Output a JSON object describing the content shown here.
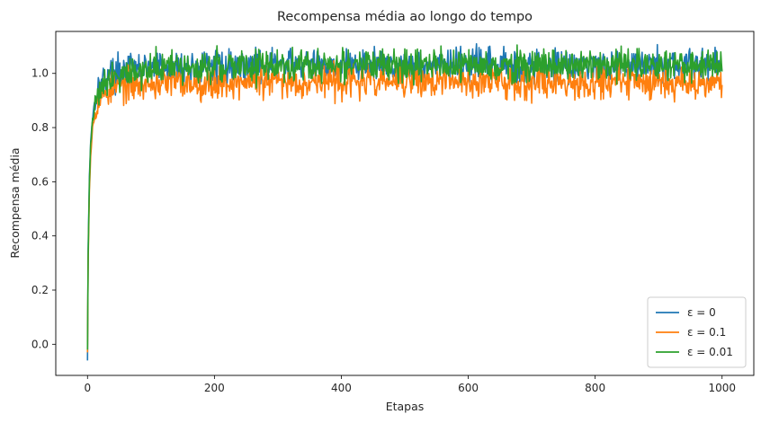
{
  "chart_data": {
    "type": "line",
    "title": "Recompensa média ao longo do tempo",
    "xlabel": "Etapas",
    "ylabel": "Recompensa média",
    "xlim": [
      -50,
      1050
    ],
    "ylim": [
      -0.115,
      1.155
    ],
    "xticks": [
      0,
      200,
      400,
      600,
      800,
      1000
    ],
    "yticks": [
      0.0,
      0.2,
      0.4,
      0.6,
      0.8,
      1.0
    ],
    "xtick_labels": [
      "0",
      "200",
      "400",
      "600",
      "800",
      "1000"
    ],
    "ytick_labels": [
      "0.0",
      "0.2",
      "0.4",
      "0.6",
      "0.8",
      "1.0"
    ],
    "legend_position": "lower-right",
    "n_steps": 1000,
    "series": [
      {
        "name": "ε = 0",
        "legend_label": "ε = 0",
        "color": "#1f77b4",
        "x": [
          0,
          1,
          3,
          5,
          8,
          12,
          16,
          20,
          30,
          40,
          60,
          80,
          100,
          150,
          200,
          270,
          300,
          400,
          500,
          600,
          700,
          800,
          900,
          1000
        ],
        "y": [
          -0.06,
          0.35,
          0.62,
          0.75,
          0.84,
          0.9,
          0.94,
          0.96,
          0.99,
          1.0,
          1.01,
          1.015,
          1.02,
          1.02,
          1.025,
          1.03,
          1.03,
          1.03,
          1.03,
          1.03,
          1.03,
          1.03,
          1.03,
          1.03
        ],
        "noise_amplitude": 0.03,
        "peak_max": 1.11
      },
      {
        "name": "ε = 0.1",
        "legend_label": "ε = 0.1",
        "color": "#ff7f0e",
        "x": [
          0,
          1,
          3,
          5,
          8,
          12,
          16,
          20,
          30,
          40,
          60,
          80,
          100,
          150,
          200,
          300,
          400,
          500,
          600,
          700,
          800,
          900,
          1000
        ],
        "y": [
          -0.03,
          0.3,
          0.57,
          0.7,
          0.8,
          0.86,
          0.89,
          0.91,
          0.93,
          0.945,
          0.955,
          0.96,
          0.965,
          0.965,
          0.965,
          0.97,
          0.97,
          0.97,
          0.97,
          0.97,
          0.97,
          0.97,
          0.97
        ],
        "noise_amplitude": 0.03,
        "peak_min": 0.9
      },
      {
        "name": "ε = 0.01",
        "legend_label": "ε = 0.01",
        "color": "#2ca02c",
        "x": [
          0,
          1,
          3,
          5,
          8,
          12,
          16,
          20,
          30,
          40,
          60,
          80,
          100,
          150,
          200,
          300,
          400,
          500,
          600,
          700,
          800,
          900,
          1000
        ],
        "y": [
          -0.02,
          0.32,
          0.6,
          0.73,
          0.83,
          0.89,
          0.93,
          0.95,
          0.98,
          0.99,
          1.0,
          1.01,
          1.015,
          1.02,
          1.025,
          1.03,
          1.03,
          1.03,
          1.03,
          1.03,
          1.03,
          1.03,
          1.03
        ],
        "noise_amplitude": 0.03,
        "peak_max": 1.1
      }
    ]
  }
}
